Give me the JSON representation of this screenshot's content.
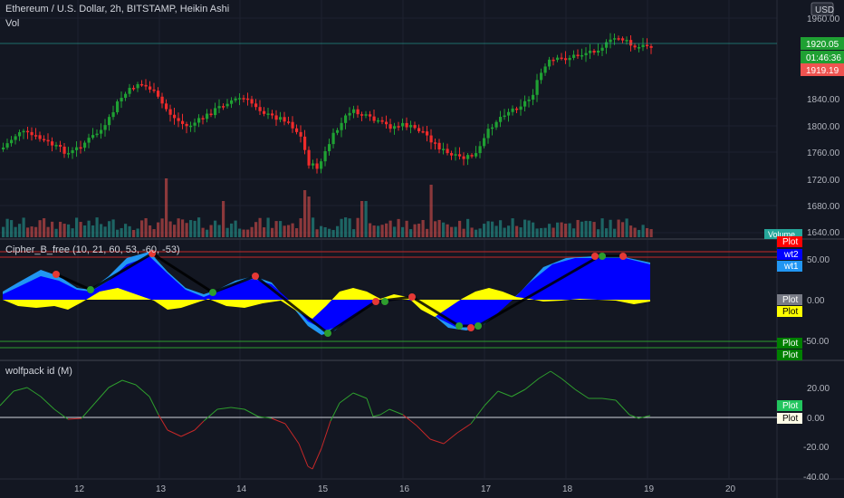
{
  "main": {
    "title": "Ethereum / U.S. Dollar, 2h, BITSTAMP, Heikin Ashi",
    "vol_label": "Vol",
    "currency": "USD",
    "price_ticks": [
      "1960.00",
      "1840.00",
      "1800.00",
      "1760.00",
      "1720.00",
      "1680.00",
      "1640.00"
    ],
    "last_price": "1920.05",
    "countdown": "01:46:36",
    "low_marker": "1919.19",
    "volume_badge": "Volume"
  },
  "cipher": {
    "title": "Cipher_B_free (10, 21, 60, 53, -60, -53)",
    "ticks": [
      "50.00",
      "0.00",
      "-50.00"
    ],
    "labels": [
      "Plot",
      "wt2",
      "wt1",
      "Plot",
      "Plot",
      "Plot",
      "Plot"
    ]
  },
  "wolfpack": {
    "title": "wolfpack id (M)",
    "ticks": [
      "20.00",
      "0.00",
      "-20.00",
      "-40.00"
    ],
    "labels": [
      "Plot",
      "Plot"
    ]
  },
  "time_axis": [
    "12",
    "13",
    "14",
    "15",
    "16",
    "17",
    "18",
    "19",
    "20"
  ],
  "colors": {
    "background": "#131722",
    "up": "#26a69a",
    "up_candle": "#1fa033",
    "down": "#ef2b2b",
    "wt1": "#2196f3",
    "wt2": "#0000ff",
    "yellow": "#ffff00",
    "green_line": "#2e9e2e",
    "red_line": "#c62828"
  }
}
